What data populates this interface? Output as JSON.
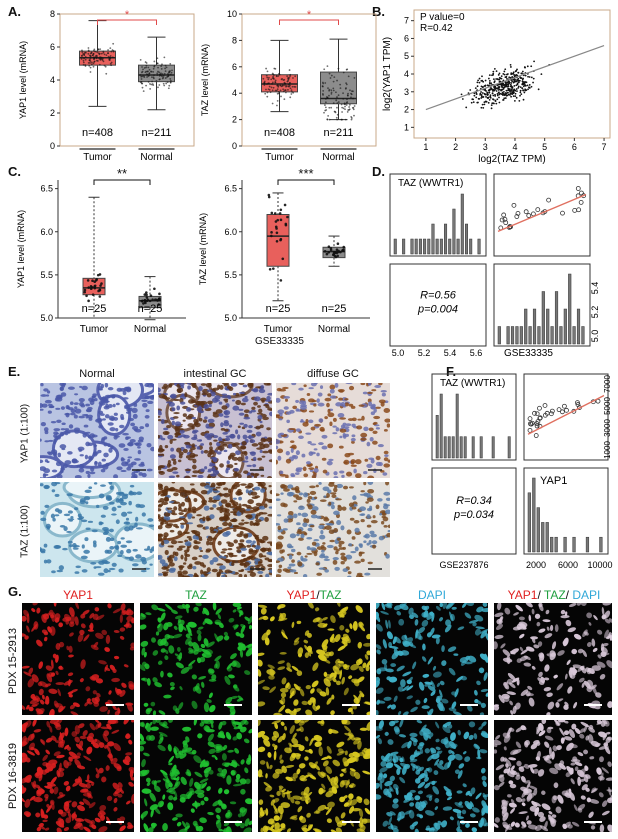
{
  "panels": {
    "A": {
      "label": "A.",
      "charts": [
        {
          "ylabel": "YAP1 level (mRNA)",
          "yticks": [
            "0",
            "2",
            "4",
            "6",
            "8"
          ],
          "ymax": 8,
          "groups": [
            {
              "name": "Tumor",
              "n": "n=408",
              "q1": 4.9,
              "med": 5.35,
              "q3": 5.75,
              "lo": 2.4,
              "hi": 7.6,
              "color": "#e8605c"
            },
            {
              "name": "Normal",
              "n": "n=211",
              "q1": 3.9,
              "med": 4.3,
              "q3": 4.9,
              "lo": 2.2,
              "hi": 6.6,
              "color": "#8c8c8c"
            }
          ],
          "sig": "*"
        },
        {
          "ylabel": "TAZ level (mRNA)",
          "yticks": [
            "0",
            "2",
            "4",
            "6",
            "8",
            "10"
          ],
          "ymax": 10,
          "groups": [
            {
              "name": "Tumor",
              "n": "n=408",
              "q1": 4.1,
              "med": 4.7,
              "q3": 5.4,
              "lo": 2.6,
              "hi": 8.0,
              "color": "#e8605c"
            },
            {
              "name": "Normal",
              "n": "n=211",
              "q1": 3.2,
              "med": 3.6,
              "q3": 5.6,
              "lo": 2.0,
              "hi": 8.1,
              "color": "#8c8c8c"
            }
          ],
          "sig": "*"
        }
      ]
    },
    "B": {
      "label": "B.",
      "annot1": "P value=0",
      "annot2": "R=0.42",
      "xlabel": "log2(TAZ TPM)",
      "ylabel": "log2(YAP1 TPM)",
      "xticks": [
        "1",
        "2",
        "3",
        "4",
        "5",
        "6",
        "7"
      ],
      "yticks": [
        "1",
        "2",
        "3",
        "4",
        "5",
        "6",
        "7"
      ]
    },
    "C": {
      "label": "C.",
      "footer": "GSE33335",
      "charts": [
        {
          "ylabel": "YAP1 level (mRNA)",
          "yticks": [
            "5.0",
            "5.5",
            "6.0",
            "6.5"
          ],
          "ymin": 5.0,
          "ymax": 6.6,
          "groups": [
            {
              "name": "Tumor",
              "n": "n=25",
              "q1": 5.27,
              "med": 5.35,
              "q3": 5.46,
              "lo": 5.0,
              "hi": 6.4,
              "color": "#e8605c"
            },
            {
              "name": "Normal",
              "n": "n=25",
              "q1": 5.12,
              "med": 5.2,
              "q3": 5.25,
              "lo": 4.98,
              "hi": 5.48,
              "color": "#8c8c8c"
            }
          ],
          "sig": "**"
        },
        {
          "ylabel": "TAZ level (mRNA)",
          "yticks": [
            "5.0",
            "5.5",
            "6.0",
            "6.5"
          ],
          "ymin": 5.0,
          "ymax": 6.6,
          "groups": [
            {
              "name": "Tumor",
              "n": "n=25",
              "q1": 5.6,
              "med": 5.95,
              "q3": 6.2,
              "lo": 5.2,
              "hi": 6.45,
              "color": "#e8605c"
            },
            {
              "name": "Normal",
              "n": "n=25",
              "q1": 5.7,
              "med": 5.77,
              "q3": 5.82,
              "lo": 5.6,
              "hi": 5.95,
              "color": "#8c8c8c"
            }
          ],
          "sig": "***"
        }
      ]
    },
    "D": {
      "label": "D.",
      "title": "TAZ (WWTR1)",
      "R": "R=0.56",
      "p": "p=0.004",
      "xticks": [
        "5.0",
        "5.2",
        "5.4",
        "5.6"
      ],
      "yticks": [
        "5.0",
        "5.2",
        "5.4"
      ],
      "footer": "GSE33335"
    },
    "E": {
      "label": "E.",
      "cols": [
        "Normal",
        "intestinal GC",
        "diffuse GC"
      ],
      "rows": [
        "YAP1 (1:100)",
        "TAZ (1:100)"
      ]
    },
    "F": {
      "label": "F.",
      "title": "TAZ (WWTR1)",
      "gene": "YAP1",
      "R": "R=0.34",
      "p": "p=0.034",
      "footer": "GSE237876",
      "xticks": [
        "2000",
        "6000",
        "10000"
      ],
      "yticks": [
        "1000",
        "3000",
        "5000",
        "7000"
      ]
    },
    "G": {
      "label": "G.",
      "cols": [
        {
          "parts": [
            {
              "t": "YAP1",
              "c": "#e02020"
            }
          ]
        },
        {
          "parts": [
            {
              "t": "TAZ",
              "c": "#20a040"
            }
          ]
        },
        {
          "parts": [
            {
              "t": "YAP1",
              "c": "#e02020"
            },
            {
              "t": "/",
              "c": "#111111"
            },
            {
              "t": "TAZ",
              "c": "#20a040"
            }
          ]
        },
        {
          "parts": [
            {
              "t": "DAPI",
              "c": "#30a8d8"
            }
          ]
        },
        {
          "parts": [
            {
              "t": "YAP1",
              "c": "#e02020"
            },
            {
              "t": "/ ",
              "c": "#111111"
            },
            {
              "t": "TAZ",
              "c": "#20a040"
            },
            {
              "t": "/ ",
              "c": "#111111"
            },
            {
              "t": "DAPI",
              "c": "#30a8d8"
            }
          ]
        }
      ],
      "rows": [
        "PDX 15-2913",
        "PDX 16-3819"
      ],
      "colors": [
        "#d82020",
        "#20c030",
        "#d8c820",
        "#40b0c8",
        "#d8c8d8"
      ]
    }
  }
}
